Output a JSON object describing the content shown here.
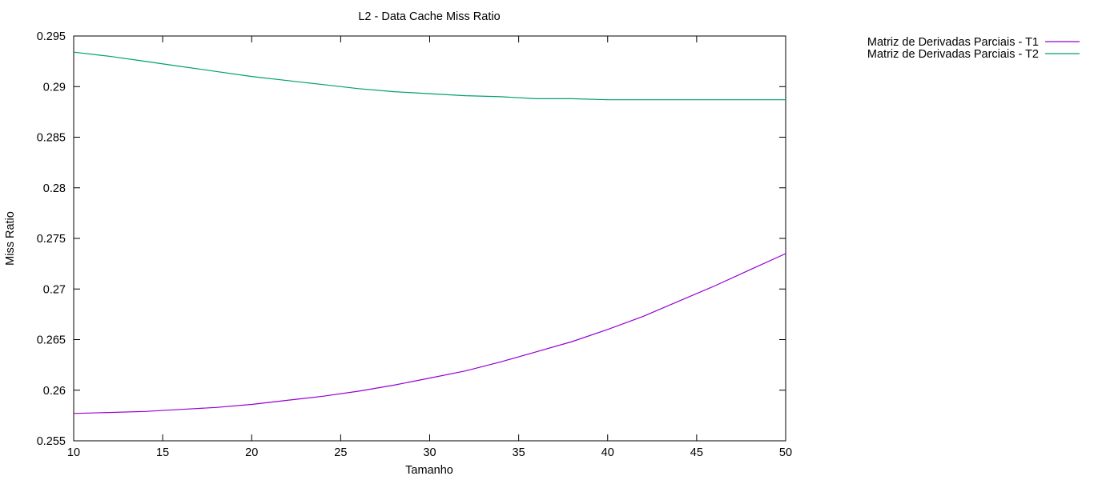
{
  "chart_data": {
    "type": "line",
    "title": "L2 - Data Cache Miss Ratio",
    "xlabel": "Tamanho",
    "ylabel": "Miss Ratio",
    "xlim": [
      10,
      50
    ],
    "ylim": [
      0.255,
      0.295
    ],
    "x_ticks": [
      10,
      15,
      20,
      25,
      30,
      35,
      40,
      45,
      50
    ],
    "x_tick_labels": [
      "10",
      "15",
      "20",
      "25",
      "30",
      "35",
      "40",
      "45",
      "50"
    ],
    "y_ticks": [
      0.255,
      0.26,
      0.265,
      0.27,
      0.275,
      0.28,
      0.285,
      0.29,
      0.295
    ],
    "y_tick_labels": [
      "0.255",
      "0.26",
      "0.265",
      "0.27",
      "0.275",
      "0.28",
      "0.285",
      "0.29",
      "0.295"
    ],
    "grid": false,
    "legend_position": "outside-top-right",
    "x": [
      10,
      12,
      14,
      16,
      18,
      20,
      22,
      24,
      26,
      28,
      30,
      32,
      34,
      36,
      38,
      40,
      42,
      44,
      46,
      48,
      50
    ],
    "series": [
      {
        "name": "Matriz de Derivadas Parciais - T1",
        "color": "#9400d3",
        "values": [
          0.2577,
          0.2578,
          0.2579,
          0.2581,
          0.2583,
          0.2586,
          0.259,
          0.2594,
          0.2599,
          0.2605,
          0.2612,
          0.2619,
          0.2628,
          0.2638,
          0.2648,
          0.266,
          0.2673,
          0.2688,
          0.2703,
          0.2719,
          0.2735
        ]
      },
      {
        "name": "Matriz de Derivadas Parciais - T2",
        "color": "#009e73",
        "values": [
          0.2934,
          0.293,
          0.2925,
          0.292,
          0.2915,
          0.291,
          0.2906,
          0.2902,
          0.2898,
          0.2895,
          0.2893,
          0.2891,
          0.289,
          0.2888,
          0.2888,
          0.2887,
          0.2887,
          0.2887,
          0.2887,
          0.2887,
          0.2887
        ]
      }
    ]
  }
}
